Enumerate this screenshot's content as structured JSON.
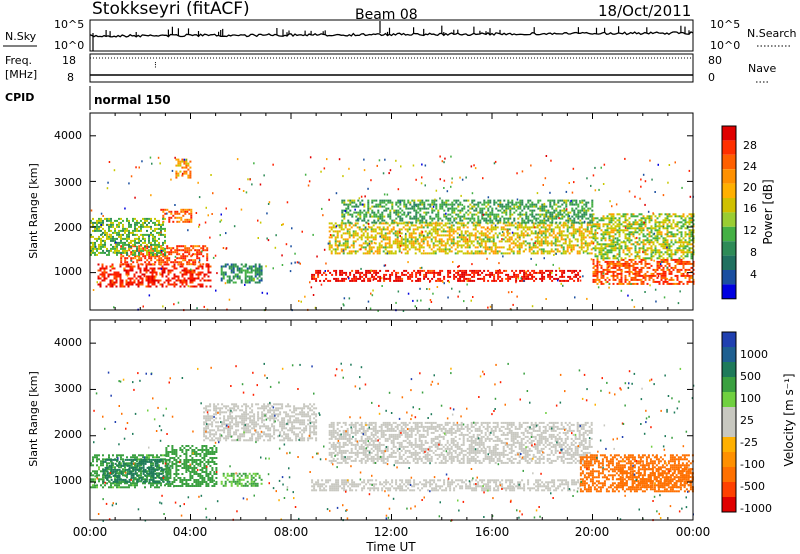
{
  "header": {
    "station": "Stokkseyri (fitACF)",
    "beam": "Beam 08",
    "date": "18/Oct/2011"
  },
  "noise_panel": {
    "left_label": "N.Sky",
    "left_ticks": [
      "10^5",
      "10^0"
    ],
    "right_label": "N.Search",
    "right_ticks": [
      "10^5",
      "10^0"
    ]
  },
  "freq_panel": {
    "left_label_top": "Freq.",
    "left_label_bottom": "[MHz]",
    "left_ticks": [
      "18",
      "8"
    ],
    "right_label": "Nave",
    "right_ticks": [
      "80",
      "0"
    ]
  },
  "cpid_panel": {
    "label": "CPID",
    "mode_text": "normal 150"
  },
  "x_axis": {
    "label": "Time UT",
    "ticks": [
      "00:00",
      "04:00",
      "08:00",
      "12:00",
      "16:00",
      "20:00",
      "00:00"
    ]
  },
  "power_panel": {
    "ylabel": "Slant Range [km]",
    "yticks": [
      "4000",
      "3000",
      "2000",
      "1000"
    ],
    "colorbar_label": "Power [dB]",
    "colorbar_ticks": [
      "28",
      "24",
      "20",
      "16",
      "12",
      "8",
      "4"
    ],
    "colors": [
      "#0000e0",
      "#1a4fa0",
      "#2e8b57",
      "#44b044",
      "#c8c800",
      "#ffa000",
      "#ff6000",
      "#ff2000",
      "#e00000"
    ]
  },
  "velocity_panel": {
    "ylabel": "Slant Range [km]",
    "yticks": [
      "4000",
      "3000",
      "2000",
      "1000"
    ],
    "colorbar_label": "Velocity [m s⁻¹]",
    "colorbar_ticks": [
      "1000",
      "500",
      "100",
      "25",
      "-25",
      "-100",
      "-500",
      "-1000"
    ],
    "colors": [
      "#2040b0",
      "#1e7a5a",
      "#3aa040",
      "#70d040",
      "#c8c8c0",
      "#c8c8c0",
      "#ffb000",
      "#ff7000",
      "#ff2000",
      "#e00000"
    ]
  },
  "chart_data": [
    {
      "type": "heatmap",
      "title": "Power",
      "xlabel": "Time UT",
      "ylabel": "Slant Range [km]",
      "xlim": [
        "00:00",
        "24:00"
      ],
      "ylim": [
        180,
        4500
      ],
      "colorbar": {
        "label": "Power [dB]",
        "range": [
          0,
          30
        ]
      },
      "regions": [
        {
          "t0": 0.3,
          "t1": 4.8,
          "r0": 700,
          "r1": 1200,
          "value": 27
        },
        {
          "t0": 1.2,
          "t1": 4.7,
          "r0": 1200,
          "r1": 1600,
          "value": 24
        },
        {
          "t0": 2.8,
          "t1": 4.0,
          "r0": 2100,
          "r1": 2400,
          "value": 22
        },
        {
          "t0": 3.4,
          "t1": 4.0,
          "r0": 3100,
          "r1": 3500,
          "value": 20
        },
        {
          "t0": 0.0,
          "t1": 3.0,
          "r0": 1400,
          "r1": 2200,
          "value": 12
        },
        {
          "t0": 5.2,
          "t1": 6.8,
          "r0": 800,
          "r1": 1200,
          "value": 8
        },
        {
          "t0": 8.8,
          "t1": 19.5,
          "r0": 820,
          "r1": 1060,
          "value": 28
        },
        {
          "t0": 9.5,
          "t1": 20.0,
          "r0": 1400,
          "r1": 2100,
          "value": 16
        },
        {
          "t0": 10.0,
          "t1": 20.0,
          "r0": 2100,
          "r1": 2600,
          "value": 10
        },
        {
          "t0": 20.0,
          "t1": 24.0,
          "r0": 750,
          "r1": 1300,
          "value": 24
        },
        {
          "t0": 20.0,
          "t1": 24.0,
          "r0": 1300,
          "r1": 2300,
          "value": 14
        }
      ]
    },
    {
      "type": "heatmap",
      "title": "Velocity",
      "xlabel": "Time UT",
      "ylabel": "Slant Range [km]",
      "xlim": [
        "00:00",
        "24:00"
      ],
      "ylim": [
        180,
        4500
      ],
      "colorbar": {
        "label": "Velocity [m s⁻¹]",
        "range": [
          -1000,
          1000
        ]
      },
      "regions": [
        {
          "t0": 0.0,
          "t1": 3.0,
          "r0": 900,
          "r1": 1600,
          "value": 80
        },
        {
          "t0": 0.5,
          "t1": 3.2,
          "r0": 1000,
          "r1": 1500,
          "value": 400
        },
        {
          "t0": 3.0,
          "t1": 5.0,
          "r0": 900,
          "r1": 1800,
          "value": 90
        },
        {
          "t0": 5.2,
          "t1": 6.8,
          "r0": 900,
          "r1": 1200,
          "value": 60
        },
        {
          "t0": 8.8,
          "t1": 19.5,
          "r0": 820,
          "r1": 1060,
          "value": 0
        },
        {
          "t0": 9.5,
          "t1": 20.0,
          "r0": 1400,
          "r1": 2300,
          "value": 0
        },
        {
          "t0": 4.5,
          "t1": 9.0,
          "r0": 1900,
          "r1": 2700,
          "value": 0
        },
        {
          "t0": 19.5,
          "t1": 24.0,
          "r0": 800,
          "r1": 1600,
          "value": -150
        },
        {
          "t0": 21.0,
          "t1": 24.0,
          "r0": 900,
          "r1": 1300,
          "value": -300
        }
      ]
    }
  ]
}
